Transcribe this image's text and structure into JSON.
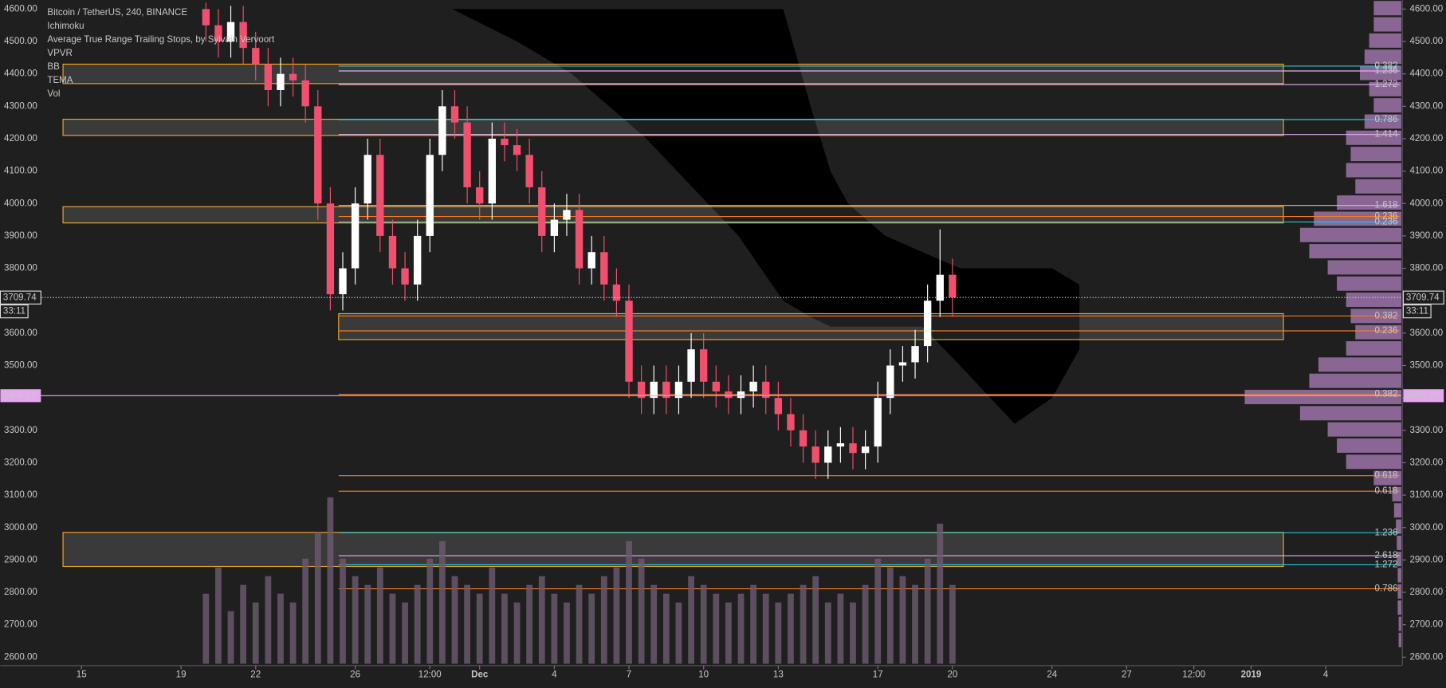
{
  "chart_data": {
    "type": "candlestick",
    "legend_texts": [
      "Bitcoin / TetherUS, 240, BINANCE",
      "Ichimoku",
      "Average True Range Trailing Stops, by Sylvain Vervoort",
      "VPVR",
      "BB",
      "TEMA",
      "Vol"
    ],
    "up_color": "#ffffff",
    "down_color": "#f0506e",
    "xlim": [
      11.74,
      68.04
    ],
    "xticks": [
      {
        "value": 15,
        "label": "15"
      },
      {
        "value": 19,
        "label": "19"
      },
      {
        "value": 22,
        "label": "22"
      },
      {
        "value": 26,
        "label": "26"
      },
      {
        "value": 29,
        "label": "12:00"
      },
      {
        "value": 31,
        "label": "Dec"
      },
      {
        "value": 34,
        "label": "4"
      },
      {
        "value": 37,
        "label": "7"
      },
      {
        "value": 40,
        "label": "10"
      },
      {
        "value": 43,
        "label": "13"
      },
      {
        "value": 47,
        "label": "17"
      },
      {
        "value": 50,
        "label": "20"
      },
      {
        "value": 54,
        "label": "24"
      },
      {
        "value": 57,
        "label": "27"
      },
      {
        "value": 59.7,
        "label": "12:00"
      },
      {
        "value": 62,
        "label": "2019"
      },
      {
        "value": 65,
        "label": "4"
      }
    ],
    "ylim": [
      2574,
      4628
    ],
    "yticks": [
      {
        "value": 2600,
        "label": "2600.00"
      },
      {
        "value": 2700,
        "label": "2700.00"
      },
      {
        "value": 2800,
        "label": "2800.00"
      },
      {
        "value": 2900,
        "label": "2900.00"
      },
      {
        "value": 3000,
        "label": "3000.00"
      },
      {
        "value": 3100,
        "label": "3100.00"
      },
      {
        "value": 3200,
        "label": "3200.00"
      },
      {
        "value": 3300,
        "label": "3300.00"
      },
      {
        "value": 3400,
        "label": "3400.00"
      },
      {
        "value": 3500,
        "label": "3500.00"
      },
      {
        "value": 3600,
        "label": "3600.00"
      },
      {
        "value": 3700,
        "label": "3700.00"
      },
      {
        "value": 3800,
        "label": "3800.00"
      },
      {
        "value": 3900,
        "label": "3900.00"
      },
      {
        "value": 4000,
        "label": "4000.00"
      },
      {
        "value": 4100,
        "label": "4100.00"
      },
      {
        "value": 4200,
        "label": "4200.00"
      },
      {
        "value": 4300,
        "label": "4300.00"
      },
      {
        "value": 4400,
        "label": "4400.00"
      },
      {
        "value": 4500,
        "label": "4500.00"
      },
      {
        "value": 4600,
        "label": "4600.00"
      }
    ],
    "x": [
      20,
      20.5,
      21,
      21.5,
      22,
      22.5,
      23,
      23.5,
      24,
      24.5,
      25,
      25.5,
      26,
      26.5,
      27,
      27.5,
      28,
      28.5,
      29,
      29.5,
      30,
      30.5,
      31,
      31.5,
      32,
      32.5,
      33,
      33.5,
      34,
      34.5,
      35,
      35.5,
      36,
      36.5,
      37,
      37.5,
      38,
      38.5,
      39,
      39.5,
      40,
      40.5,
      41,
      41.5,
      42,
      42.5,
      43,
      43.5,
      44,
      44.5,
      45,
      45.5,
      46,
      46.5,
      47,
      47.5,
      48,
      48.5,
      49,
      49.5,
      50
    ],
    "open": [
      4600,
      4550,
      4500,
      4560,
      4480,
      4430,
      4350,
      4400,
      4380,
      4300,
      4000,
      3720,
      3800,
      4000,
      4150,
      3900,
      3800,
      3750,
      3900,
      4150,
      4300,
      4250,
      4050,
      4000,
      4200,
      4180,
      4150,
      4050,
      3900,
      3950,
      3980,
      3800,
      3850,
      3750,
      3700,
      3450,
      3400,
      3450,
      3400,
      3450,
      3550,
      3450,
      3420,
      3400,
      3420,
      3450,
      3400,
      3350,
      3300,
      3250,
      3200,
      3250,
      3260,
      3230,
      3250,
      3400,
      3500,
      3510,
      3560,
      3700,
      3780
    ],
    "high": [
      4620,
      4600,
      4610,
      4610,
      4530,
      4480,
      4450,
      4450,
      4430,
      4350,
      4050,
      3850,
      4050,
      4200,
      4200,
      3950,
      3850,
      3950,
      4200,
      4350,
      4350,
      4300,
      4100,
      4250,
      4250,
      4230,
      4200,
      4100,
      4000,
      4030,
      4030,
      3900,
      3900,
      3800,
      3750,
      3500,
      3500,
      3500,
      3500,
      3600,
      3600,
      3500,
      3470,
      3470,
      3500,
      3500,
      3450,
      3400,
      3350,
      3300,
      3300,
      3310,
      3310,
      3300,
      3450,
      3550,
      3560,
      3610,
      3750,
      3920,
      3830
    ],
    "low": [
      4500,
      4450,
      4450,
      4430,
      4380,
      4300,
      4300,
      4330,
      4250,
      3950,
      3670,
      3670,
      3750,
      3950,
      3850,
      3750,
      3700,
      3700,
      3850,
      4100,
      4200,
      4000,
      3950,
      3950,
      4130,
      4100,
      4000,
      3850,
      3850,
      3900,
      3750,
      3750,
      3700,
      3650,
      3400,
      3350,
      3350,
      3350,
      3350,
      3400,
      3400,
      3370,
      3350,
      3350,
      3370,
      3350,
      3300,
      3250,
      3200,
      3150,
      3150,
      3200,
      3180,
      3180,
      3200,
      3350,
      3450,
      3460,
      3510,
      3650,
      3650
    ],
    "close": [
      4550,
      4500,
      4560,
      4480,
      4430,
      4350,
      4400,
      4380,
      4300,
      4000,
      3720,
      3800,
      4000,
      4150,
      3900,
      3800,
      3750,
      3900,
      4150,
      4300,
      4250,
      4050,
      4000,
      4200,
      4180,
      4150,
      4050,
      3900,
      3950,
      3980,
      3800,
      3850,
      3750,
      3700,
      3450,
      3400,
      3450,
      3400,
      3450,
      3550,
      3450,
      3420,
      3400,
      3420,
      3450,
      3400,
      3350,
      3300,
      3250,
      3200,
      3250,
      3260,
      3230,
      3250,
      3400,
      3500,
      3510,
      3560,
      3700,
      3780,
      3710
    ],
    "volume": [
      40,
      55,
      30,
      45,
      35,
      50,
      40,
      35,
      60,
      75,
      95,
      60,
      50,
      45,
      55,
      40,
      35,
      45,
      60,
      70,
      50,
      45,
      40,
      55,
      40,
      35,
      45,
      50,
      40,
      35,
      45,
      40,
      50,
      55,
      70,
      60,
      45,
      40,
      35,
      50,
      45,
      40,
      35,
      40,
      45,
      40,
      35,
      40,
      45,
      50,
      35,
      40,
      35,
      45,
      60,
      55,
      50,
      45,
      60,
      80,
      45
    ],
    "volume_color": "#6d5a70",
    "cloud": {
      "x": [
        29.9,
        32.5,
        34.7,
        37.7,
        41.4,
        43.2,
        44.3,
        45.1,
        45.8,
        47.3,
        48.8,
        50.3,
        52.5,
        54.0,
        55.1
      ],
      "top": [
        4600,
        4600,
        4600,
        4600,
        4600,
        4600,
        4300,
        4100,
        4000,
        3900,
        3850,
        3800,
        3800,
        3800,
        3750
      ],
      "bottom": [
        4600,
        4500,
        4400,
        4200,
        3900,
        3700,
        3650,
        3620,
        3620,
        3620,
        3620,
        3500,
        3320,
        3400,
        3550
      ]
    },
    "zones": [
      {
        "low": 4370,
        "high": 4430
      },
      {
        "low": 4210,
        "high": 4260
      },
      {
        "low": 3940,
        "high": 3990
      },
      {
        "low": 3580,
        "high": 3660
      },
      {
        "low": 2880,
        "high": 2985
      }
    ],
    "levels": [
      {
        "label": "0.382",
        "value": 4424,
        "color": "#26c6da"
      },
      {
        "label": "1.236",
        "value": 4409,
        "color": "#e0b0f0"
      },
      {
        "label": "1.272",
        "value": 4367,
        "color": "#e0b0f0"
      },
      {
        "label": "0.786",
        "value": 4259,
        "color": "#26c6da"
      },
      {
        "label": "1.414",
        "value": 4213,
        "color": "#e0b0f0"
      },
      {
        "label": "1.618",
        "value": 3994,
        "color": "#e0b0f0"
      },
      {
        "label": "0.236",
        "value": 3960,
        "color": "#f57c1f"
      },
      {
        "label": "0.236",
        "value": 3943,
        "color": "#26c6da"
      },
      {
        "label": "0.382",
        "value": 3653,
        "color": "#f57c1f"
      },
      {
        "label": "0.236",
        "value": 3607,
        "color": "#f57c1f"
      },
      {
        "label": "0.382",
        "value": 3411,
        "color": "#f57c1f"
      },
      {
        "label": "0.618",
        "value": 3160,
        "color": "#f57c1f"
      },
      {
        "label": "0.618",
        "value": 3112,
        "color": "#f57c1f"
      },
      {
        "label": "1.236",
        "value": 2984,
        "color": "#26c6da"
      },
      {
        "label": "2.618",
        "value": 2913,
        "color": "#e0b0f0"
      },
      {
        "label": "1.272",
        "value": 2885,
        "color": "#26c6da"
      },
      {
        "label": "0.786",
        "value": 2811,
        "color": "#f57c1f"
      }
    ],
    "profile_prices": [
      2650,
      2700,
      2750,
      2800,
      2850,
      2900,
      2950,
      3000,
      3050,
      3100,
      3150,
      3200,
      3250,
      3300,
      3350,
      3400,
      3450,
      3500,
      3550,
      3600,
      3650,
      3700,
      3750,
      3800,
      3850,
      3900,
      3950,
      4000,
      4050,
      4100,
      4150,
      4200,
      4250,
      4300,
      4350,
      4400,
      4450,
      4500,
      4550,
      4600
    ],
    "profile_values": [
      3,
      3,
      4,
      4,
      4,
      5,
      5,
      6,
      8,
      10,
      30,
      60,
      70,
      80,
      110,
      170,
      100,
      90,
      60,
      50,
      55,
      60,
      70,
      80,
      100,
      110,
      95,
      70,
      50,
      60,
      55,
      60,
      40,
      30,
      35,
      45,
      40,
      35,
      30,
      30
    ],
    "profile_color": "#b784c4",
    "last_price": 3709.74,
    "countdown": "33:11",
    "marked_price": 3406.89
  }
}
